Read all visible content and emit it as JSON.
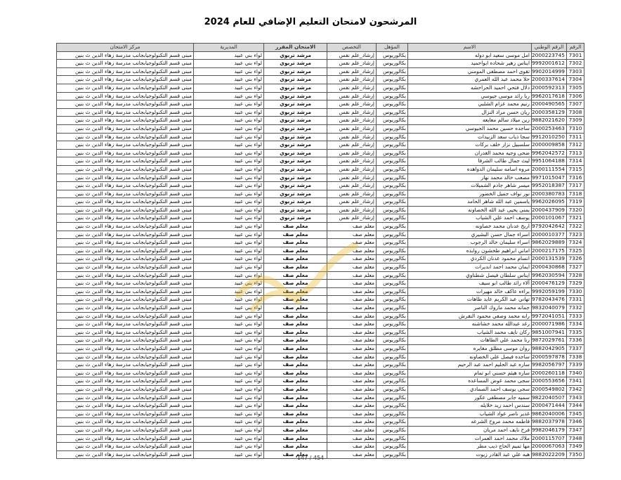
{
  "title": "المرشحون لامتحان التعليم الإضافي للعام 2024",
  "columns": [
    "الرقم",
    "الرقم الوطني",
    "الاسم",
    "المؤهل",
    "التخصص",
    "الامتحان المقرر",
    "المديرية",
    "مركز الامتحان"
  ],
  "rows": [
    [
      "7301",
      "2000223745",
      "امل موسى سعيد ابو دوله",
      "بكالوريوس",
      "إرشاد_علم نفس",
      "مرشد تربوي",
      "لواء بني عبيد",
      "مبنى قسم التكنولوجيابجانب مدرسة زهاء الدين ث بنين"
    ],
    [
      "7302",
      "9992001612",
      "ايناس زهير شحاده ابواحميد",
      "بكالوريوس",
      "إرشاد_علم نفس",
      "مرشد تربوي",
      "لواء بني عبيد",
      "مبنى قسم التكنولوجيابجانب مدرسة زهاء الدين ث بنين"
    ],
    [
      "7303",
      "9902014999",
      "تقوى احمد مصطفى المومني",
      "بكالوريوس",
      "إرشاد_علم نفس",
      "مرشد تربوي",
      "لواء بني عبيد",
      "مبنى قسم التكنولوجيابجانب مدرسة زهاء الدين ث بنين"
    ],
    [
      "7304",
      "2000337614",
      "حلا محمد عبد الله العمري",
      "بكالوريوس",
      "إرشاد_علم نفس",
      "مرشد تربوي",
      "لواء بني عبيد",
      "مبنى قسم التكنولوجيابجانب مدرسة زهاء الدين ث بنين"
    ],
    [
      "7305",
      "2000592313",
      "دلال فتحي احميد الحراحشه",
      "بكالوريوس",
      "إرشاد_علم نفس",
      "مرشد تربوي",
      "لواء بني عبيد",
      "مبنى قسم التكنولوجيابجانب مدرسة زهاء الدين ث بنين"
    ],
    [
      "7306",
      "9962017618",
      "ربا رائد موسى جيوسي",
      "بكالوريوس",
      "إرشاد_علم نفس",
      "مرشد تربوي",
      "لواء بني عبيد",
      "مبنى قسم التكنولوجيابجانب مدرسة زهاء الدين ث بنين"
    ],
    [
      "7307",
      "2000490565",
      "رنيم محمد عزام الشلبي",
      "بكالوريوس",
      "إرشاد_علم نفس",
      "مرشد تربوي",
      "لواء بني عبيد",
      "مبنى قسم التكنولوجيابجانب مدرسة زهاء الدين ث بنين"
    ],
    [
      "7308",
      "2000358129",
      "ريان حسن مراد النزال",
      "بكالوريوس",
      "إرشاد_علم نفس",
      "مرشد تربوي",
      "لواء بني عبيد",
      "مبنى قسم التكنولوجيابجانب مدرسة زهاء الدين ث بنين"
    ],
    [
      "7309",
      "9882021620",
      "زين ميلاد سالم معايعه",
      "بكالوريوس",
      "إرشاد_علم نفس",
      "مرشد تربوي",
      "لواء بني عبيد",
      "مبنى قسم التكنولوجيابجانب مدرسة زهاء الدين ث بنين"
    ],
    [
      "7310",
      "2000253463",
      "ساجده حسين محمد الجيوسي",
      "بكالوريوس",
      "إرشاد_علم نفس",
      "مرشد تربوي",
      "لواء بني عبيد",
      "مبنى قسم التكنولوجيابجانب مدرسة زهاء الدين ث بنين"
    ],
    [
      "7311",
      "9912010250",
      "سجا ذياب سعد الزبيدات",
      "بكالوريوس",
      "إرشاد_علم نفس",
      "مرشد تربوي",
      "لواء بني عبيد",
      "مبنى قسم التكنولوجيابجانب مدرسة زهاء الدين ث بنين"
    ],
    [
      "7312",
      "2000009858",
      "سلسبيل نزار خلف بركات",
      "بكالوريوس",
      "إرشاد_علم نفس",
      "مرشد تربوي",
      "لواء بني عبيد",
      "مبنى قسم التكنولوجيابجانب مدرسة زهاء الدين ث بنين"
    ],
    [
      "7313",
      "9962042572",
      "ضحى وجيه محمد الغدران",
      "بكالوريوس",
      "إرشاد_علم نفس",
      "مرشد تربوي",
      "لواء بني عبيد",
      "مبنى قسم التكنولوجيابجانب مدرسة زهاء الدين ث بنين"
    ],
    [
      "7314",
      "9951064188",
      "ليث جمال طالب الشرفا",
      "بكالوريوس",
      "إرشاد_علم نفس",
      "مرشد تربوي",
      "لواء بني عبيد",
      "مبنى قسم التكنولوجيابجانب مدرسة زهاء الدين ث بنين"
    ],
    [
      "7315",
      "2000111554",
      "مروه اسامه سليمان الدواهده",
      "بكالوريوس",
      "إرشاد_علم نفس",
      "مرشد تربوي",
      "لواء بني عبيد",
      "مبنى قسم التكنولوجيابجانب مدرسة زهاء الدين ث بنين"
    ],
    [
      "7316",
      "9971015047",
      "مصعب خالد محمد نهار",
      "بكالوريوس",
      "إرشاد_علم نفس",
      "مرشد تربوي",
      "لواء بني عبيد",
      "مبنى قسم التكنولوجيابجانب مدرسة زهاء الدين ث بنين"
    ],
    [
      "7317",
      "9952018387",
      "ميسر شاهر جادم الشميلات",
      "بكالوريوس",
      "إرشاد_علم نفس",
      "مرشد تربوي",
      "لواء بني عبيد",
      "مبنى قسم التكنولوجيابجانب مدرسة زهاء الدين ث بنين"
    ],
    [
      "7318",
      "2000380783",
      "نور نواف جميل الخضور",
      "بكالوريوس",
      "إرشاد_علم نفس",
      "مرشد تربوي",
      "لواء بني عبيد",
      "مبنى قسم التكنولوجيابجانب مدرسة زهاء الدين ث بنين"
    ],
    [
      "7319",
      "9962026095",
      "ياسمين عبد الله شاهر الحامد",
      "بكالوريوس",
      "إرشاد_علم نفس",
      "مرشد تربوي",
      "لواء بني عبيد",
      "مبنى قسم التكنولوجيابجانب مدرسة زهاء الدين ث بنين"
    ],
    [
      "7320",
      "2000437909",
      "يمنى يحيى عبد الله الخصاونه",
      "بكالوريوس",
      "إرشاد_علم نفس",
      "مرشد تربوي",
      "لواء بني عبيد",
      "مبنى قسم التكنولوجيابجانب مدرسة زهاء الدين ث بنين"
    ],
    [
      "7321",
      "2000101067",
      "يوسف احمد علي الشياب",
      "بكالوريوس",
      "إرشاد_علم نفس",
      "مرشد تربوي",
      "لواء بني عبيد",
      "مبنى قسم التكنولوجيابجانب مدرسة زهاء الدين ث بنين"
    ],
    [
      "7322",
      "9792042642",
      "اريج عدنان محمد خصاونه",
      "بكالوريوس",
      "معلم صف",
      "معلم صف",
      "لواء بني عبيد",
      "مبنى قسم التكنولوجيابجانب مدرسة زهاء الدين ث بنين"
    ],
    [
      "7323",
      "2000010377",
      "اسراء جمال حسن البشيري",
      "بكالوريوس",
      "معلم صف",
      "معلم صف",
      "لواء بني عبيد",
      "مبنى قسم التكنولوجيابجانب مدرسة زهاء الدين ث بنين"
    ],
    [
      "7324",
      "9862029889",
      "اسراء سليمان خالد الرجوب",
      "بكالوريوس",
      "معلم صف",
      "معلم صف",
      "لواء بني عبيد",
      "مبنى قسم التكنولوجيابجانب مدرسة زهاء الدين ث بنين"
    ],
    [
      "7325",
      "2000217175",
      "اماني ابراهيم طخشون روابده",
      "بكالوريوس",
      "معلم صف",
      "معلم صف",
      "لواء بني عبيد",
      "مبنى قسم التكنولوجيابجانب مدرسة زهاء الدين ث بنين"
    ],
    [
      "7326",
      "2000131539",
      "انسام محمود عدنان الكردي",
      "بكالوريوس",
      "معلم صف",
      "معلم صف",
      "لواء بني عبيد",
      "مبنى قسم التكنولوجيابجانب مدرسة زهاء الدين ث بنين"
    ],
    [
      "7327",
      "2000430868",
      "ايمان محمد احمد ابديرات",
      "بكالوريوس",
      "معلم صف",
      "معلم صف",
      "لواء بني عبيد",
      "مبنى قسم التكنولوجيابجانب مدرسة زهاء الدين ث بنين"
    ],
    [
      "7328",
      "9962030594",
      "ايناس سلطان فيصل شطناوي",
      "بكالوريوس",
      "معلم صف",
      "معلم صف",
      "لواء بني عبيد",
      "مبنى قسم التكنولوجيابجانب مدرسة زهاء الدين ث بنين"
    ],
    [
      "7329",
      "2000476129",
      "آلاء رائد طالب ابو سيف",
      "بكالوريوس",
      "معلم صف",
      "معلم صف",
      "لواء بني عبيد",
      "مبنى قسم التكنولوجيابجانب مدرسة زهاء الدين ث بنين"
    ],
    [
      "7330",
      "9992059199",
      "براءه عاكف خالد مهيرات",
      "بكالوريوس",
      "معلم صف",
      "معلم صف",
      "لواء بني عبيد",
      "مبنى قسم التكنولوجيابجانب مدرسة زهاء الدين ث بنين"
    ],
    [
      "7331",
      "9782043476",
      "تهاني عبد الكريم عايد طاهات",
      "بكالوريوس",
      "معلم صف",
      "معلم صف",
      "لواء بني عبيد",
      "مبنى قسم التكنولوجيابجانب مدرسة زهاء الدين ث بنين"
    ],
    [
      "7332",
      "9832040079",
      "جمانه محمد ماروك الناصر",
      "بكالوريوس",
      "معلم صف",
      "معلم صف",
      "لواء بني عبيد",
      "مبنى قسم التكنولوجيابجانب مدرسة زهاء الدين ث بنين"
    ],
    [
      "7333",
      "9972041051",
      "رابه محمد وصفي محمود النقرش",
      "بكالوريوس",
      "معلم صف",
      "معلم صف",
      "لواء بني عبيد",
      "مبنى قسم التكنولوجيابجانب مدرسة زهاء الدين ث بنين"
    ],
    [
      "7334",
      "2000071986",
      "رغد عبدالله محمد خشاشنه",
      "بكالوريوس",
      "معلم صف",
      "معلم صف",
      "لواء بني عبيد",
      "مبنى قسم التكنولوجيابجانب مدرسة زهاء الدين ث بنين"
    ],
    [
      "7335",
      "9851007941",
      "ركان نايف محمد الشياب",
      "بكالوريوس",
      "معلم صف",
      "معلم صف",
      "لواء بني عبيد",
      "مبنى قسم التكنولوجيابجانب مدرسة زهاء الدين ث بنين"
    ],
    [
      "7336",
      "9872029761",
      "رنا محمد علي الطاهات",
      "بكالوريوس",
      "معلم صف",
      "معلم صف",
      "لواء بني عبيد",
      "مبنى قسم التكنولوجيابجانب مدرسة زهاء الدين ث بنين"
    ],
    [
      "7337",
      "9882042905",
      "روان موسى مطلق مغايره",
      "بكالوريوس",
      "معلم صف",
      "معلم صف",
      "لواء بني عبيد",
      "مبنى قسم التكنولوجيابجانب مدرسة زهاء الدين ث بنين"
    ],
    [
      "7338",
      "2000597878",
      "ساجده فيصل علي الخصاونه",
      "بكالوريوس",
      "معلم صف",
      "معلم صف",
      "لواء بني عبيد",
      "مبنى قسم التكنولوجيابجانب مدرسة زهاء الدين ث بنين"
    ],
    [
      "7339",
      "9982056797",
      "ساره عبد الحليم احمد عبد الرحيم",
      "بكالوريوس",
      "معلم صف",
      "معلم صف",
      "لواء بني عبيد",
      "مبنى قسم التكنولوجيابجانب مدرسة زهاء الدين ث بنين"
    ],
    [
      "7340",
      "2000260118",
      "ساره هيثم حسني ابو تمام",
      "بكالوريوس",
      "معلم صف",
      "معلم صف",
      "لواء بني عبيد",
      "مبنى قسم التكنولوجيابجانب مدرسة زهاء الدين ث بنين"
    ],
    [
      "7341",
      "2000553656",
      "سجى محمد عوض المساعده",
      "بكالوريوس",
      "معلم صف",
      "معلم صف",
      "لواء بني عبيد",
      "مبنى قسم التكنولوجيابجانب مدرسة زهاء الدين ث بنين"
    ],
    [
      "7342",
      "2000549802",
      "سجى يوسف احمد الصمادي",
      "بكالوريوس",
      "معلم صف",
      "معلم صف",
      "لواء بني عبيد",
      "مبنى قسم التكنولوجيابجانب مدرسة زهاء الدين ث بنين"
    ],
    [
      "7343",
      "9822040507",
      "سميه جابر مصطفى عكور",
      "بكالوريوس",
      "معلم صف",
      "معلم صف",
      "لواء بني عبيد",
      "مبنى قسم التكنولوجيابجانب مدرسة زهاء الدين ث بنين"
    ],
    [
      "7344",
      "2000471444",
      "سندس احمد زيد خلايله",
      "بكالوريوس",
      "معلم صف",
      "معلم صف",
      "لواء بني عبيد",
      "مبنى قسم التكنولوجيابجانب مدرسة زهاء الدين ث بنين"
    ],
    [
      "7345",
      "9862040006",
      "غدير ناصر عواد الشياب",
      "بكالوريوس",
      "معلم صف",
      "معلم صف",
      "لواء بني عبيد",
      "مبنى قسم التكنولوجيابجانب مدرسة زهاء الدين ث بنين"
    ],
    [
      "7346",
      "9882037978",
      "فاطمه محمد مروح الشرعه",
      "بكالوريوس",
      "معلم صف",
      "معلم صف",
      "لواء بني عبيد",
      "مبنى قسم التكنولوجيابجانب مدرسة زهاء الدين ث بنين"
    ],
    [
      "7347",
      "9982046179",
      "فرح نايف احمد مريان",
      "بكالوريوس",
      "معلم صف",
      "معلم صف",
      "لواء بني عبيد",
      "مبنى قسم التكنولوجيابجانب مدرسة زهاء الدين ث بنين"
    ],
    [
      "7348",
      "2000115707",
      "ملاك محمد احمد العمرات",
      "بكالوريوس",
      "معلم صف",
      "معلم صف",
      "لواء بني عبيد",
      "مبنى قسم التكنولوجيابجانب مدرسة زهاء الدين ث بنين"
    ],
    [
      "7349",
      "2000067063",
      "مها تميم الحاج ذيب مطر",
      "بكالوريوس",
      "معلم صف",
      "معلم صف",
      "لواء بني عبيد",
      "مبنى قسم التكنولوجيابجانب مدرسة زهاء الدين ث بنين"
    ],
    [
      "7350",
      "9882022209",
      "هبه علي عبد القادر زيوت",
      "بكالوريوس",
      "معلم صف",
      "معلم صف",
      "لواء بني عبيد",
      "مبنى قسم التكنولوجيابجانب مدرسة زهاء الدين ث بنين"
    ]
  ],
  "footer": "147 / 454",
  "watermark_color": "#e6b422"
}
